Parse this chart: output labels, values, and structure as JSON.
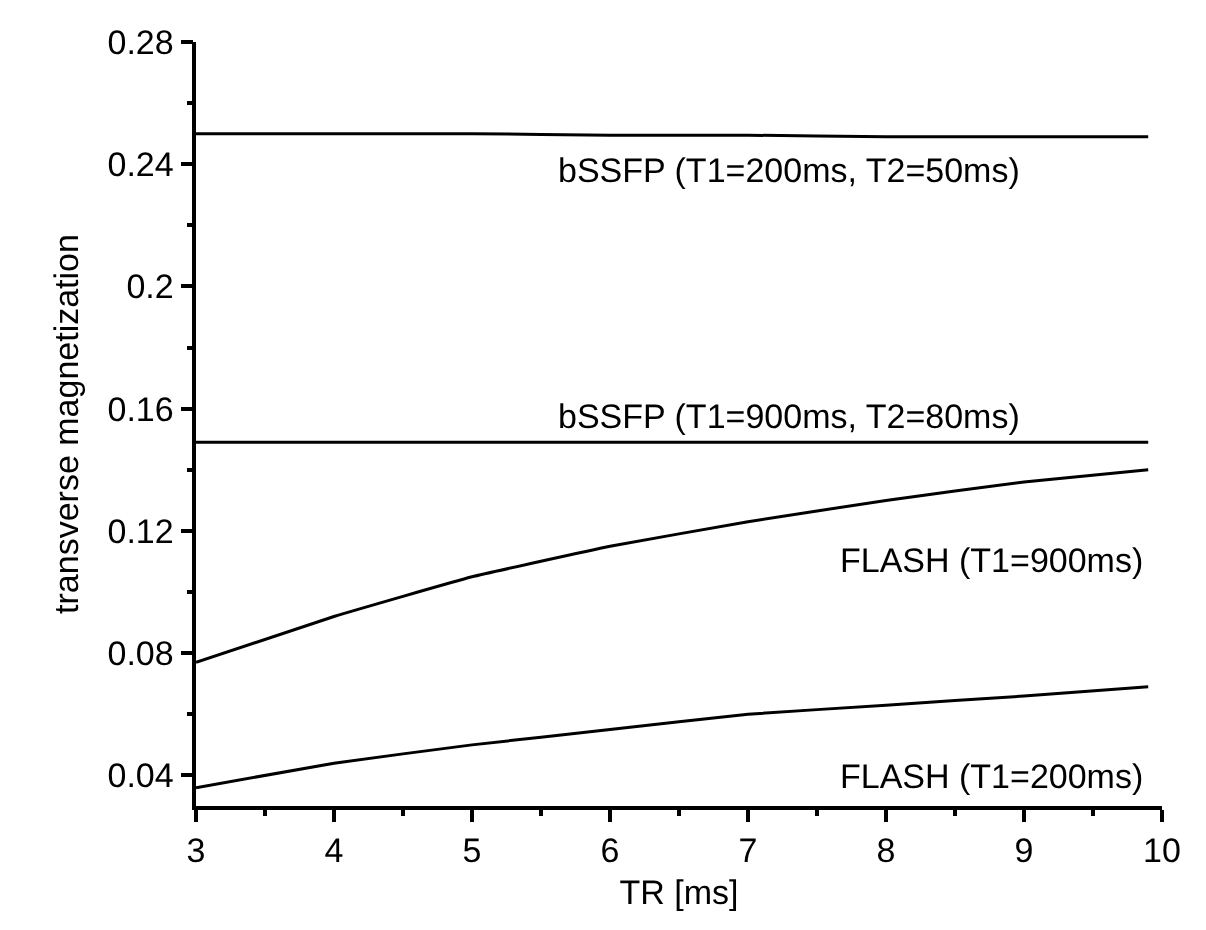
{
  "chart_data": {
    "type": "line",
    "xlabel": "TR [ms]",
    "ylabel": "transverse magnetization",
    "xlim": [
      3,
      10
    ],
    "xticks": [
      3,
      4,
      5,
      6,
      7,
      8,
      9,
      10
    ],
    "ylim": [
      0.03,
      0.28
    ],
    "yticks": [
      0.04,
      0.08,
      0.12,
      0.16,
      0.2,
      0.24,
      0.28
    ],
    "grid": false,
    "legend": false,
    "marker": "none",
    "line_style": "solid",
    "series": [
      {
        "name": "bSSFP (T1=200ms, T2=50ms)",
        "color": "#000000",
        "x": [
          3,
          4,
          5,
          6,
          7,
          8,
          9,
          9.9
        ],
        "values": [
          0.25,
          0.25,
          0.25,
          0.2495,
          0.2495,
          0.249,
          0.249,
          0.249
        ]
      },
      {
        "name": "bSSFP (T1=900ms, T2=80ms)",
        "color": "#000000",
        "x": [
          3,
          4,
          5,
          6,
          7,
          8,
          9,
          9.9
        ],
        "values": [
          0.149,
          0.149,
          0.149,
          0.149,
          0.149,
          0.149,
          0.149,
          0.149
        ]
      },
      {
        "name": "FLASH (T1=900ms)",
        "color": "#000000",
        "x": [
          3,
          4,
          5,
          6,
          7,
          8,
          9,
          9.9
        ],
        "values": [
          0.077,
          0.092,
          0.105,
          0.115,
          0.123,
          0.13,
          0.136,
          0.14
        ]
      },
      {
        "name": "FLASH (T1=200ms)",
        "color": "#000000",
        "x": [
          3,
          4,
          5,
          6,
          7,
          8,
          9,
          9.9
        ],
        "values": [
          0.036,
          0.044,
          0.05,
          0.055,
          0.06,
          0.063,
          0.066,
          0.069
        ]
      }
    ]
  }
}
